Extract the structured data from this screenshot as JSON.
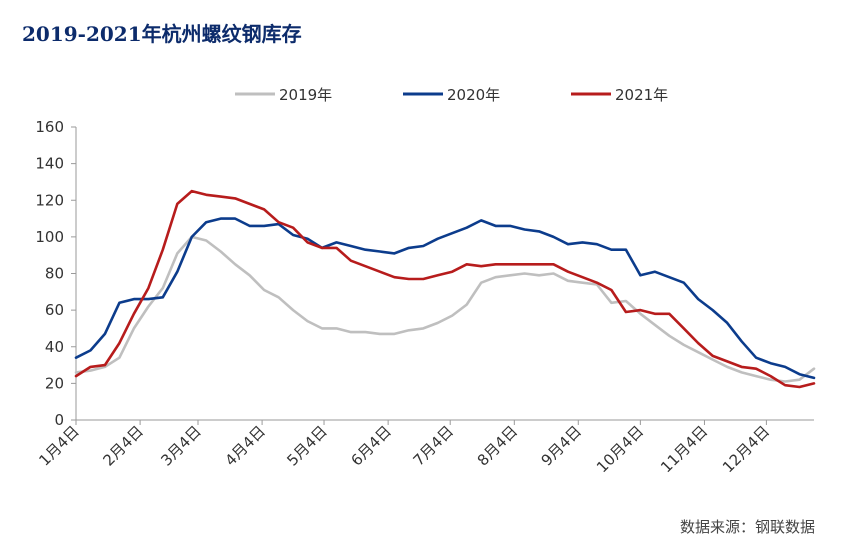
{
  "chart_data": {
    "type": "line",
    "title": "2019-2021年杭州螺纹钢库存",
    "source": "数据来源：钢联数据",
    "xlabel": "",
    "ylabel": "",
    "ylim": [
      0,
      160
    ],
    "yticks": [
      0,
      20,
      40,
      60,
      80,
      100,
      120,
      140,
      160
    ],
    "xlim": [
      0,
      51
    ],
    "xticks": [
      {
        "label": "1月4日",
        "week": 0
      },
      {
        "label": "2月4日",
        "week": 4.43
      },
      {
        "label": "3月4日",
        "week": 8.43
      },
      {
        "label": "4月4日",
        "week": 12.86
      },
      {
        "label": "5月4日",
        "week": 17.14
      },
      {
        "label": "6月4日",
        "week": 21.57
      },
      {
        "label": "7月4日",
        "week": 25.86
      },
      {
        "label": "8月4日",
        "week": 30.29
      },
      {
        "label": "9月4日",
        "week": 34.71
      },
      {
        "label": "10月4日",
        "week": 39.0
      },
      {
        "label": "11月4日",
        "week": 43.43
      },
      {
        "label": "12月4日",
        "week": 47.71
      }
    ],
    "grid": false,
    "legend_position": "top",
    "series": [
      {
        "name": "2019年",
        "color": "#bfbfbf",
        "values": [
          26,
          27,
          29,
          34,
          50,
          62,
          72,
          91,
          100,
          98,
          92,
          85,
          79,
          71,
          67,
          60,
          54,
          50,
          50,
          48,
          48,
          47,
          47,
          49,
          50,
          53,
          57,
          63,
          75,
          78,
          79,
          80,
          79,
          80,
          76,
          75,
          74,
          64,
          65,
          58,
          52,
          46,
          41,
          37,
          33,
          29,
          26,
          24,
          22,
          21,
          22,
          28
        ]
      },
      {
        "name": "2020年",
        "color": "#0c3c8c",
        "values": [
          34,
          38,
          47,
          64,
          66,
          66,
          67,
          81,
          100,
          108,
          110,
          110,
          106,
          106,
          107,
          101,
          99,
          94,
          97,
          95,
          93,
          92,
          91,
          94,
          95,
          99,
          102,
          105,
          109,
          106,
          106,
          104,
          103,
          100,
          96,
          97,
          96,
          93,
          93,
          79,
          81,
          78,
          75,
          66,
          60,
          53,
          43,
          34,
          31,
          29,
          25,
          23
        ]
      },
      {
        "name": "2021年",
        "color": "#b71c1c",
        "values": [
          24,
          29,
          30,
          42,
          58,
          72,
          93,
          118,
          125,
          123,
          122,
          121,
          118,
          115,
          108,
          105,
          97,
          94,
          94,
          87,
          84,
          81,
          78,
          77,
          77,
          79,
          81,
          85,
          84,
          85,
          85,
          85,
          85,
          85,
          81,
          78,
          75,
          71,
          59,
          60,
          58,
          58,
          50,
          42,
          35,
          32,
          29,
          28,
          24,
          19,
          18,
          20
        ]
      }
    ]
  }
}
